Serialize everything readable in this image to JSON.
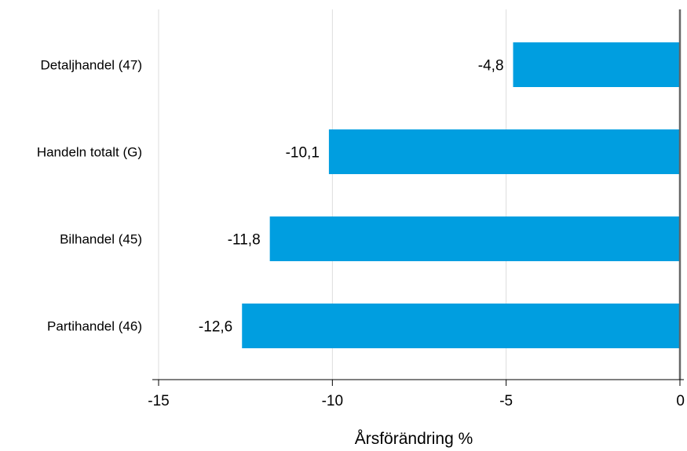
{
  "chart_data": {
    "type": "bar",
    "orientation": "horizontal",
    "categories": [
      "Detaljhandel (47)",
      "Handeln totalt (G)",
      "Bilhandel (45)",
      "Partihandel (46)"
    ],
    "values": [
      -4.8,
      -10.1,
      -11.8,
      -12.6
    ],
    "value_labels": [
      "-4,8",
      "-10,1",
      "-11,8",
      "-12,6"
    ],
    "title": "",
    "xlabel": "Årsförändring %",
    "ylabel": "",
    "xlim": [
      -15,
      0
    ],
    "x_ticks": [
      -15,
      -10,
      -5,
      0
    ],
    "x_tick_labels": [
      "-15",
      "-10",
      "-5",
      "0"
    ],
    "grid": "vertical",
    "legend": "none",
    "colors": {
      "bar": "#009ee0",
      "grid": "#dddddd",
      "zero_line": "#666666",
      "axis": "#000000"
    }
  }
}
